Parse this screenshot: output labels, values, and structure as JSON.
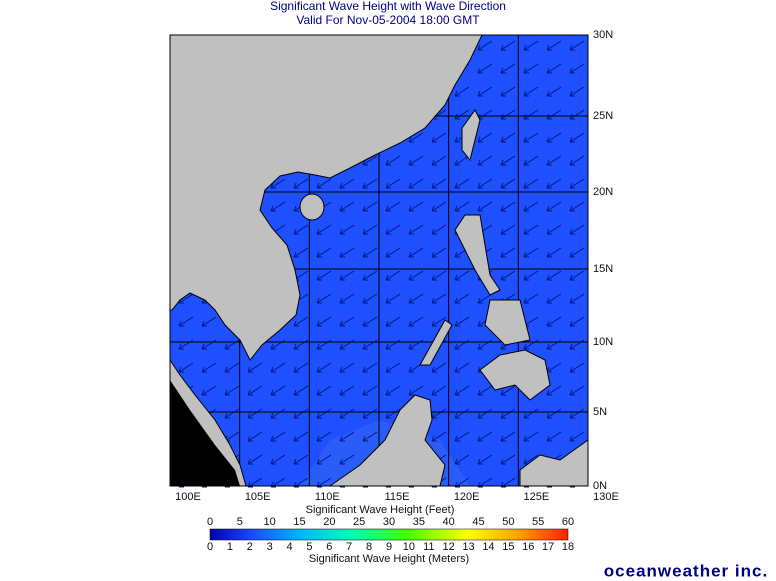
{
  "header": {
    "title": "Significant Wave Height with Wave Direction",
    "subtitle": "Valid For Nov-05-2004 18:00 GMT"
  },
  "map": {
    "lon_labels": [
      "100E",
      "105E",
      "110E",
      "115E",
      "120E",
      "125E",
      "130E"
    ],
    "lat_labels": [
      "30N",
      "25N",
      "20N",
      "15N",
      "10N",
      "5N",
      "0N"
    ]
  },
  "legend": {
    "feet_title": "Significant Wave Height (Feet)",
    "feet_labels": [
      "0",
      "5",
      "10",
      "15",
      "20",
      "25",
      "30",
      "35",
      "40",
      "45",
      "50",
      "55",
      "60"
    ],
    "meters_labels": [
      "0",
      "1",
      "2",
      "3",
      "4",
      "5",
      "6",
      "7",
      "8",
      "9",
      "10",
      "11",
      "12",
      "13",
      "14",
      "15",
      "16",
      "17",
      "18"
    ],
    "meters_title": "Significant Wave Height (Meters)"
  },
  "brand": "oceanweather inc."
}
